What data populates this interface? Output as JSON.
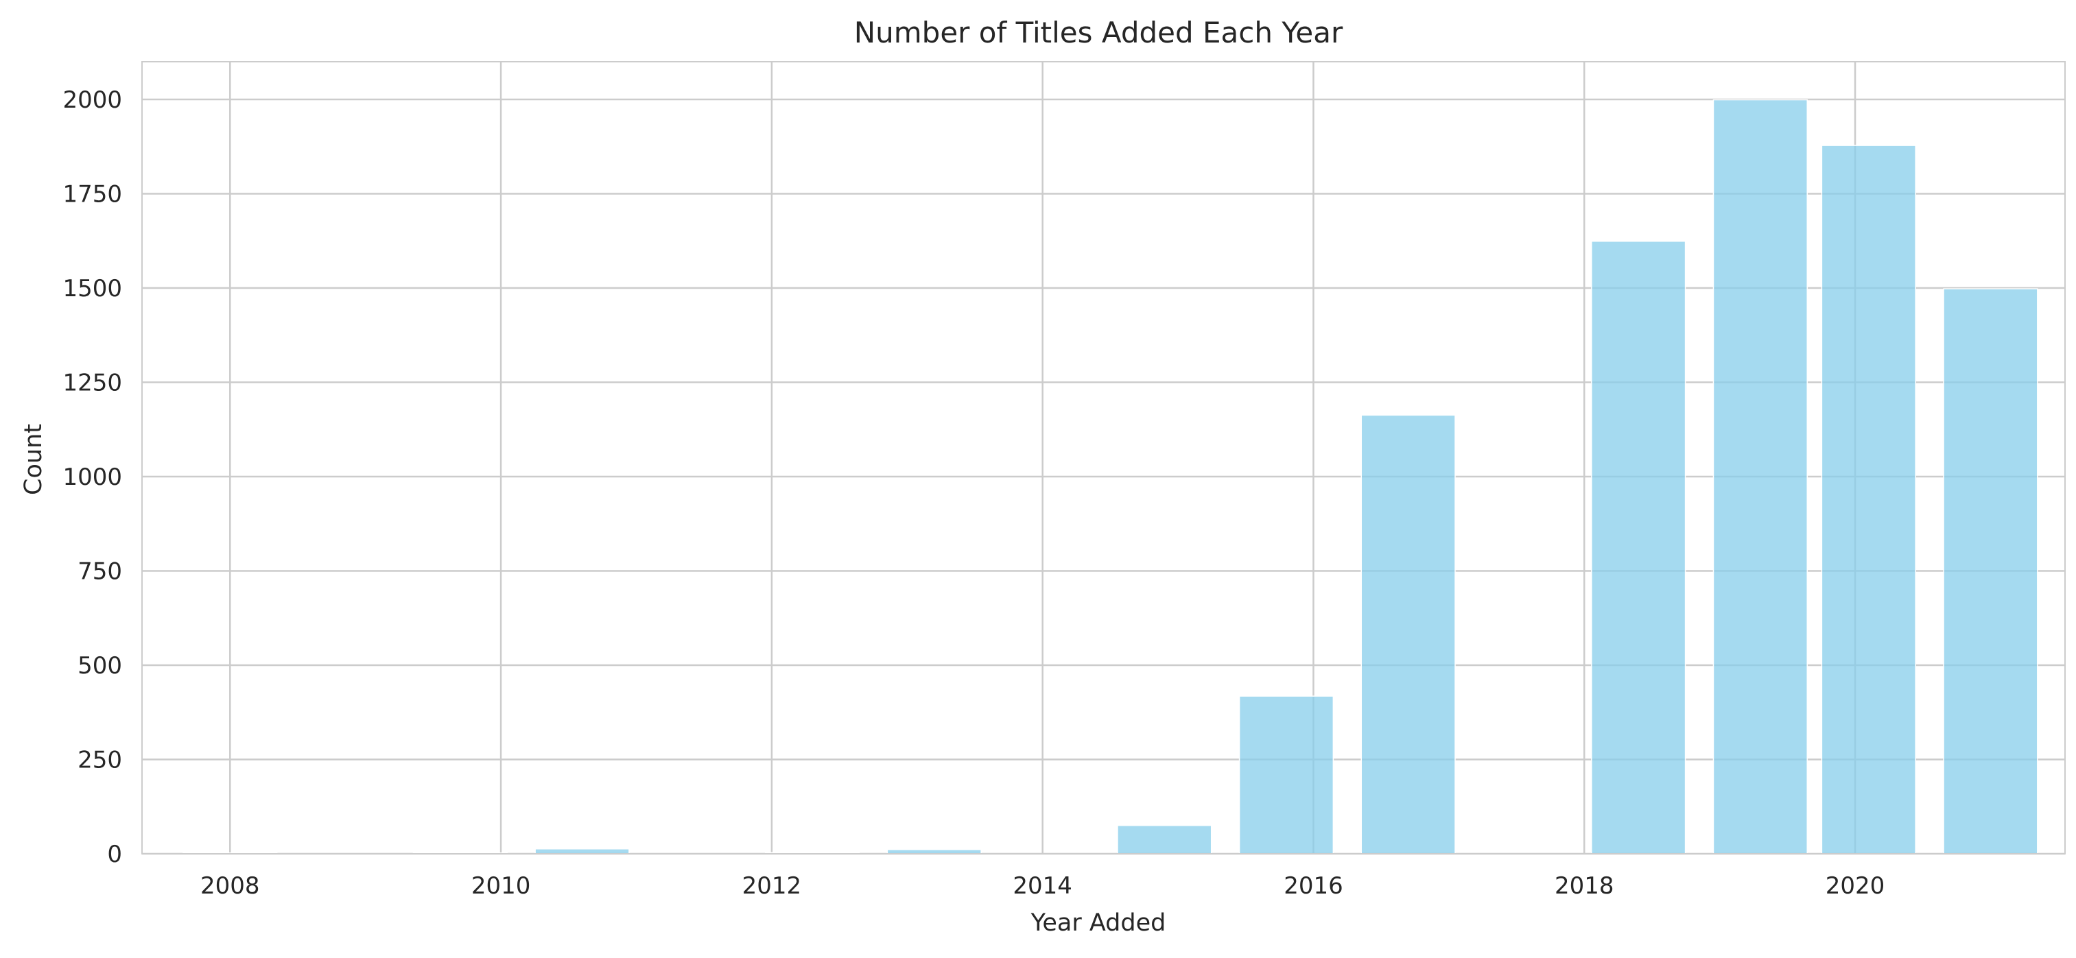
{
  "chart_data": {
    "type": "bar",
    "title": "Number of Titles Added Each Year",
    "xlabel": "Year Added",
    "ylabel": "Count",
    "xlim": [
      2007.35,
      2021.55
    ],
    "ylim": [
      0,
      2100
    ],
    "x_ticks": [
      2008,
      2010,
      2012,
      2014,
      2016,
      2018,
      2020
    ],
    "y_ticks": [
      0,
      250,
      500,
      750,
      1000,
      1250,
      1500,
      1750,
      2000
    ],
    "grid": true,
    "legend": "none",
    "bar_color": "#87ceeb",
    "bin_start": 2008,
    "bin_width": 0.866,
    "bar_fill": 0.8,
    "bins": [
      {
        "x": 2008.0,
        "value": 2
      },
      {
        "x": 2008.9,
        "value": 0
      },
      {
        "x": 2009.7,
        "value": 2
      },
      {
        "x": 2010.6,
        "value": 13
      },
      {
        "x": 2011.5,
        "value": 0
      },
      {
        "x": 2012.3,
        "value": 3
      },
      {
        "x": 2013.2,
        "value": 11
      },
      {
        "x": 2014.1,
        "value": 0
      },
      {
        "x": 2014.9,
        "value": 75
      },
      {
        "x": 2015.8,
        "value": 418
      },
      {
        "x": 2016.7,
        "value": 1163
      },
      {
        "x": 2017.5,
        "value": 0
      },
      {
        "x": 2018.4,
        "value": 1624
      },
      {
        "x": 2019.3,
        "value": 1999
      },
      {
        "x": 2020.1,
        "value": 1878
      },
      {
        "x": 2021.0,
        "value": 1498
      }
    ]
  }
}
